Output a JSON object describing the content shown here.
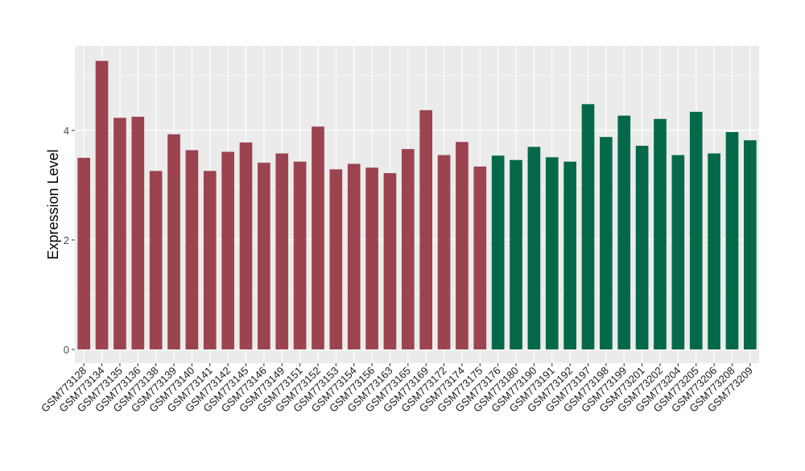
{
  "chart_data": {
    "type": "bar",
    "title": "",
    "xlabel": "",
    "ylabel": "Expression Level",
    "ylim": [
      -0.25,
      5.5
    ],
    "yticks": [
      0,
      2,
      4
    ],
    "grid": true,
    "legend": "none",
    "colors": {
      "group_a": "#9b4450",
      "group_b": "#03694a",
      "panel": "#ebebeb",
      "grid": "#ffffff"
    },
    "categories": [
      "GSM773128",
      "GSM773134",
      "GSM773135",
      "GSM773136",
      "GSM773138",
      "GSM773139",
      "GSM773140",
      "GSM773141",
      "GSM773142",
      "GSM773145",
      "GSM773146",
      "GSM773149",
      "GSM773151",
      "GSM773152",
      "GSM773153",
      "GSM773154",
      "GSM773156",
      "GSM773163",
      "GSM773165",
      "GSM773169",
      "GSM773172",
      "GSM773174",
      "GSM773175",
      "GSM773176",
      "GSM773180",
      "GSM773190",
      "GSM773191",
      "GSM773192",
      "GSM773197",
      "GSM773198",
      "GSM773199",
      "GSM773201",
      "GSM773202",
      "GSM773204",
      "GSM773205",
      "GSM773206",
      "GSM773208",
      "GSM773209"
    ],
    "values": [
      3.5,
      5.27,
      4.23,
      4.25,
      3.26,
      3.93,
      3.64,
      3.26,
      3.61,
      3.78,
      3.41,
      3.58,
      3.43,
      4.07,
      3.29,
      3.39,
      3.32,
      3.22,
      3.66,
      4.37,
      3.55,
      3.79,
      3.34,
      3.54,
      3.46,
      3.7,
      3.51,
      3.43,
      4.48,
      3.88,
      4.27,
      3.72,
      4.21,
      3.55,
      4.34,
      3.58,
      3.97,
      3.82
    ],
    "groups": [
      "a",
      "a",
      "a",
      "a",
      "a",
      "a",
      "a",
      "a",
      "a",
      "a",
      "a",
      "a",
      "a",
      "a",
      "a",
      "a",
      "a",
      "a",
      "a",
      "a",
      "a",
      "a",
      "a",
      "b",
      "b",
      "b",
      "b",
      "b",
      "b",
      "b",
      "b",
      "b",
      "b",
      "b",
      "b",
      "b",
      "b",
      "b"
    ]
  }
}
